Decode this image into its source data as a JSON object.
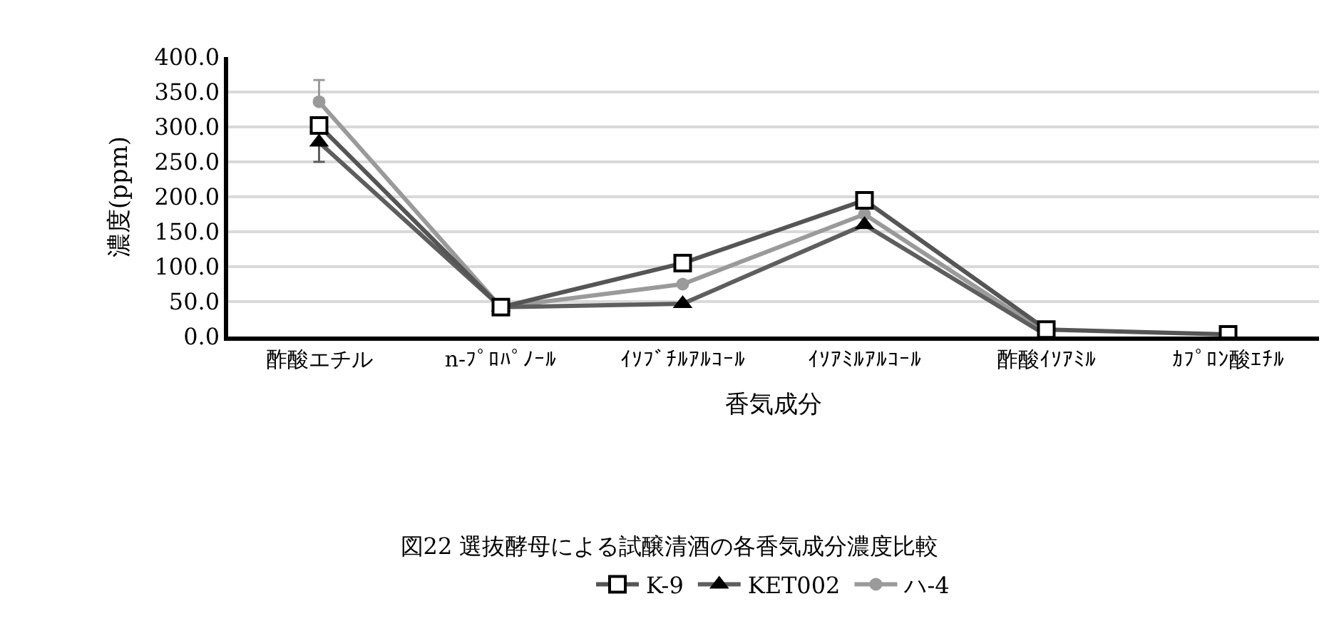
{
  "chart_data": {
    "type": "line",
    "title": "図22 選抜酵母による試醸清酒の各香気成分濃度比較",
    "xlabel": "香気成分",
    "ylabel": "濃度(ppm)",
    "categories": [
      "酢酸エチル",
      "n-ﾌﾟﾛﾊﾟﾉｰﾙ",
      "ｲｿﾌﾞﾁﾙｱﾙｺｰﾙ",
      "ｲｿｱﾐﾙｱﾙｺｰﾙ",
      "酢酸ｲｿｱﾐﾙ",
      "ｶﾌﾟﾛﾝ酸ｴﾁﾙ"
    ],
    "series": [
      {
        "name": "K-9",
        "color": "#555555",
        "marker": "square",
        "values": [
          302,
          42,
          105,
          195,
          10,
          3
        ]
      },
      {
        "name": "KET002",
        "color": "#5e5e5e",
        "marker": "triangle",
        "values": [
          278,
          42,
          47,
          160,
          2,
          null
        ],
        "errors": [
          [
            250,
            278
          ],
          null,
          null,
          null,
          null,
          null
        ]
      },
      {
        "name": "ハ-4",
        "color": "#9a9a9a",
        "marker": "circle",
        "values": [
          336,
          42,
          75,
          175,
          5,
          null
        ],
        "errors": [
          [
            336,
            367
          ],
          null,
          null,
          null,
          null,
          null
        ]
      }
    ],
    "ylim": [
      0,
      400
    ],
    "yticks": [
      {
        "value": 0,
        "label": "0.0"
      },
      {
        "value": 50,
        "label": "50.0"
      },
      {
        "value": 100,
        "label": "100.0"
      },
      {
        "value": 150,
        "label": "150.0"
      },
      {
        "value": 200,
        "label": "200.0"
      },
      {
        "value": 250,
        "label": "250.0"
      },
      {
        "value": 300,
        "label": "300.0"
      },
      {
        "value": 350,
        "label": "350.0"
      },
      {
        "value": 400,
        "label": "400.0"
      }
    ],
    "grid": "y",
    "legend": "bottom",
    "line_style": "solid"
  }
}
